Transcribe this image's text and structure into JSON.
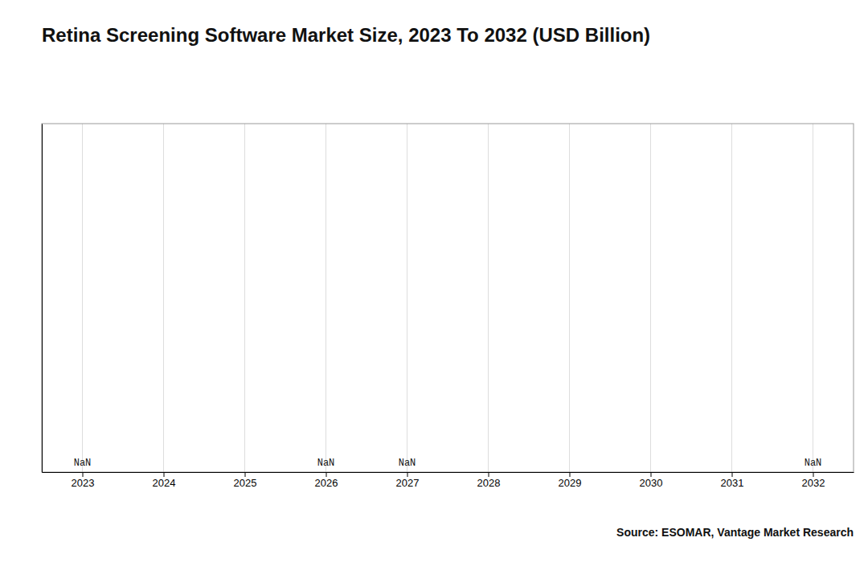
{
  "chart_data": {
    "type": "bar",
    "title": "Retina Screening Software Market Size, 2023 To 2032 (USD Billion)",
    "x": [
      2023,
      2024,
      2025,
      2026,
      2027,
      2028,
      2029,
      2030,
      2031,
      2032
    ],
    "values": [
      null,
      null,
      null,
      null,
      null,
      null,
      null,
      null,
      null,
      null
    ],
    "value_labels": [
      "NaN",
      null,
      null,
      "NaN",
      "NaN",
      null,
      null,
      null,
      null,
      "NaN"
    ],
    "xlim": [
      2022.5,
      2032.5
    ],
    "xticks": [
      2023,
      2024,
      2025,
      2026,
      2027,
      2028,
      2029,
      2030,
      2031,
      2032
    ],
    "ylim": [
      0,
      1
    ],
    "grid": true,
    "tick_labels": "x",
    "annotations": [
      "Source: ESOMAR, Vantage Market Research"
    ]
  }
}
